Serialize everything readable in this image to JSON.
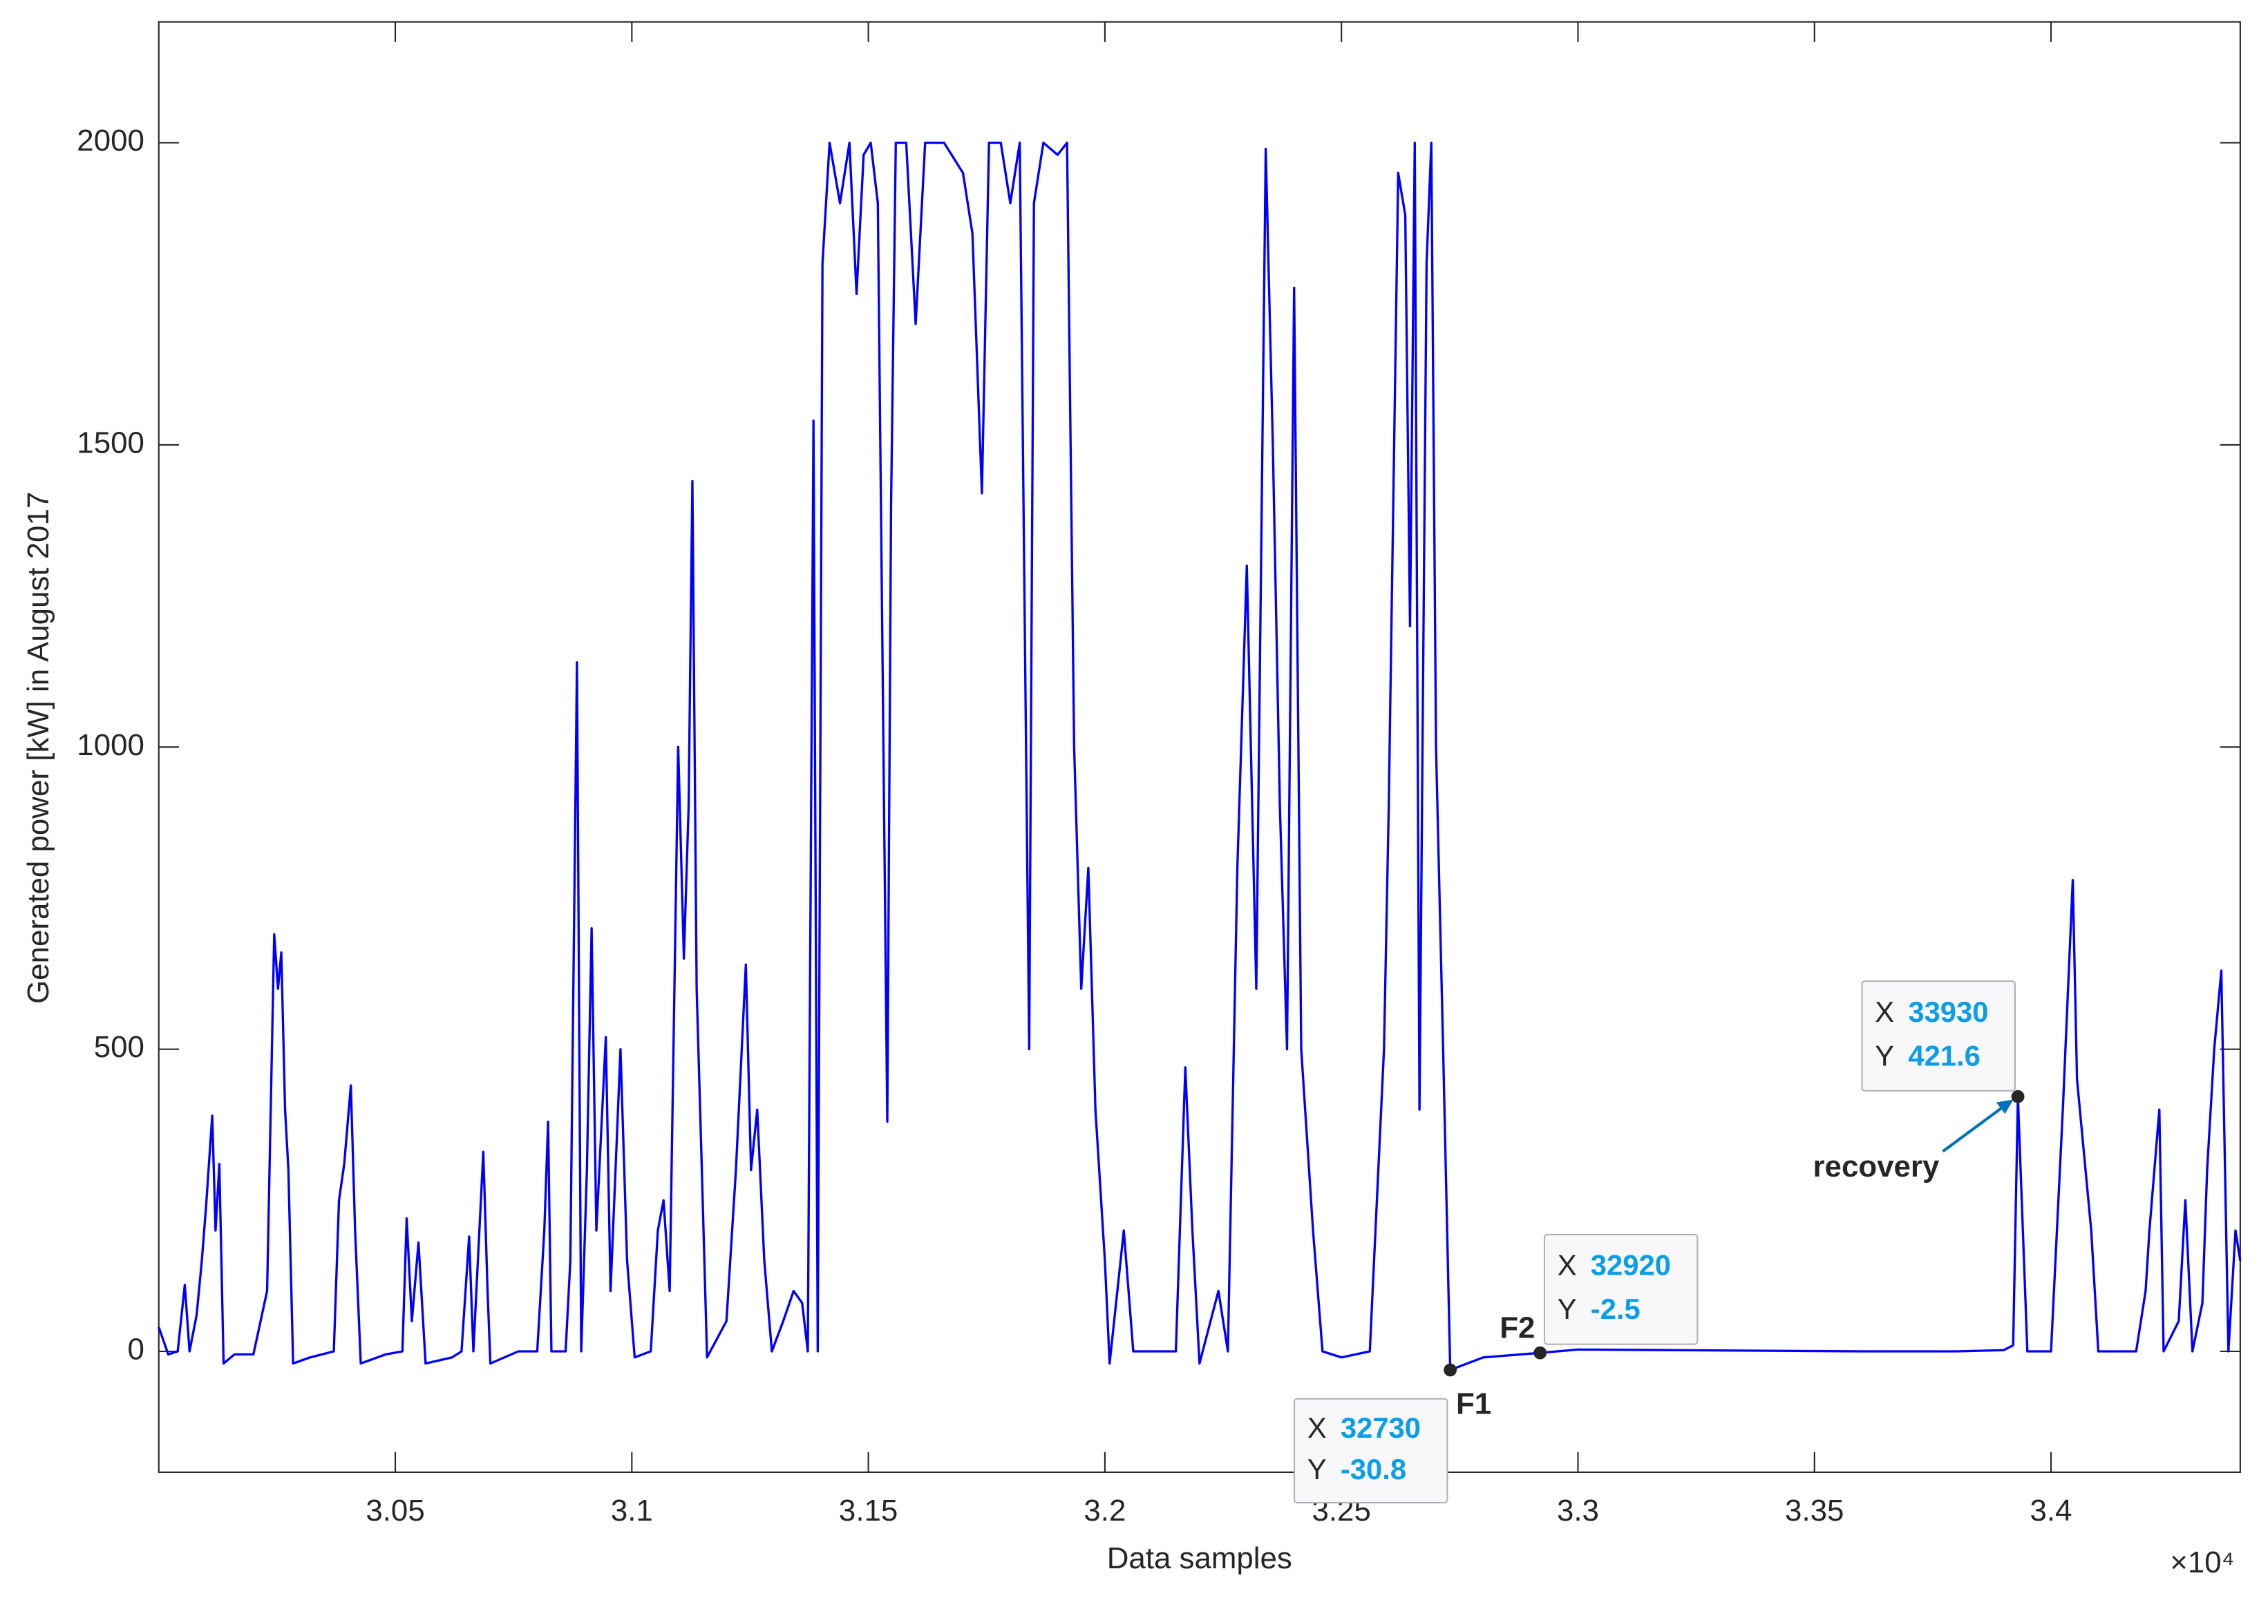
{
  "chart_data": {
    "type": "line",
    "xlabel": "Data samples",
    "ylabel": "Generated power [kW] in August 2017",
    "x_exponent": "×10⁴",
    "color": "#0000ff",
    "xlim": [
      30000,
      34400
    ],
    "ylim": [
      -200,
      2200
    ],
    "xticks": [
      {
        "value": 30500,
        "label": "3.05"
      },
      {
        "value": 31000,
        "label": "3.1"
      },
      {
        "value": 31500,
        "label": "3.15"
      },
      {
        "value": 32000,
        "label": "3.2"
      },
      {
        "value": 32500,
        "label": "3.25"
      },
      {
        "value": 33000,
        "label": "3.3"
      },
      {
        "value": 33500,
        "label": "3.35"
      },
      {
        "value": 34000,
        "label": "3.4"
      }
    ],
    "yticks": [
      0,
      500,
      1000,
      1500,
      2000
    ],
    "grid": false,
    "x": [
      30000,
      30020,
      30040,
      30055,
      30065,
      30080,
      30091,
      30100,
      30113,
      30120,
      30128,
      30137,
      30160,
      30200,
      30229,
      30244,
      30252,
      30259,
      30267,
      30274,
      30284,
      30320,
      30370,
      30381,
      30392,
      30406,
      30415,
      30427,
      30480,
      30515,
      30524,
      30535,
      30549,
      30564,
      30620,
      30640,
      30656,
      30665,
      30686,
      30695,
      30701,
      30760,
      30800,
      30815,
      30823,
      30830,
      30860,
      30870,
      30884,
      30893,
      30905,
      30915,
      30925,
      30945,
      30955,
      30976,
      30990,
      31006,
      31040,
      31055,
      31067,
      31080,
      31098,
      31110,
      31120,
      31128,
      31137,
      31148,
      31159,
      31200,
      31220,
      31241,
      31252,
      31265,
      31280,
      31296,
      31320,
      31342,
      31360,
      31372,
      31384,
      31393,
      31403,
      31418,
      31440,
      31460,
      31475,
      31490,
      31505,
      31520,
      31540,
      31548,
      31558,
      31580,
      31600,
      31620,
      31660,
      31700,
      31720,
      31740,
      31755,
      31780,
      31800,
      31820,
      31840,
      31850,
      31870,
      31900,
      31920,
      31935,
      31950,
      31965,
      31980,
      32000,
      32010,
      32040,
      32060,
      32120,
      32150,
      32170,
      32185,
      32200,
      32240,
      32260,
      32280,
      32300,
      32320,
      32340,
      32355,
      32370,
      32385,
      32400,
      32415,
      32440,
      32460,
      32500,
      32560,
      32590,
      32600,
      32620,
      32635,
      32645,
      32655,
      32665,
      32680,
      32690,
      32700,
      32715,
      32730,
      32800,
      32920,
      33000,
      33200,
      33400,
      33600,
      33800,
      33900,
      33920,
      33930,
      33950,
      34000,
      34025,
      34046,
      34055,
      34085,
      34100,
      34180,
      34200,
      34208,
      34229,
      34238,
      34270,
      34284,
      34299,
      34320,
      34330,
      34345,
      34360,
      34375,
      34390,
      34400
    ],
    "values": [
      40,
      -5,
      0,
      110,
      0,
      60,
      150,
      240,
      390,
      200,
      310,
      -20,
      -5,
      -5,
      100,
      690,
      600,
      660,
      400,
      300,
      -20,
      -10,
      0,
      250,
      310,
      440,
      200,
      -20,
      -5,
      0,
      220,
      50,
      180,
      -20,
      -10,
      0,
      190,
      0,
      330,
      100,
      -20,
      0,
      0,
      200,
      380,
      0,
      0,
      150,
      1140,
      0,
      300,
      700,
      200,
      520,
      100,
      500,
      150,
      -10,
      0,
      200,
      250,
      100,
      1000,
      650,
      900,
      1440,
      600,
      300,
      -10,
      50,
      300,
      640,
      300,
      400,
      150,
      0,
      50,
      100,
      80,
      0,
      1540,
      0,
      1800,
      2000,
      1900,
      2000,
      1750,
      1980,
      2000,
      1900,
      380,
      1400,
      2000,
      2000,
      1700,
      2000,
      2000,
      1950,
      1850,
      1420,
      2000,
      2000,
      1900,
      2000,
      500,
      1900,
      2000,
      1980,
      2000,
      1000,
      600,
      800,
      400,
      150,
      -20,
      200,
      0,
      0,
      0,
      470,
      200,
      -20,
      100,
      0,
      800,
      1300,
      600,
      1990,
      1500,
      900,
      500,
      1760,
      500,
      200,
      0,
      -10,
      0,
      500,
      900,
      1950,
      1880,
      1200,
      2000,
      400,
      1800,
      2000,
      1000,
      500,
      -30.8,
      -10,
      -2.5,
      3,
      2,
      1,
      0,
      0,
      2,
      10,
      421.6,
      0,
      0,
      400,
      780,
      450,
      200,
      0,
      0,
      100,
      200,
      400,
      0,
      50,
      250,
      0,
      80,
      300,
      500,
      630,
      0,
      200,
      150
    ],
    "datatip_x_label": "X",
    "datatip_y_label": "Y",
    "datatips": [
      {
        "x": 32730,
        "y": -30.8,
        "label": "F1"
      },
      {
        "x": 32920,
        "y": -2.5,
        "label": "F2"
      },
      {
        "x": 33930,
        "y": 421.6,
        "label": "recovery"
      }
    ]
  }
}
